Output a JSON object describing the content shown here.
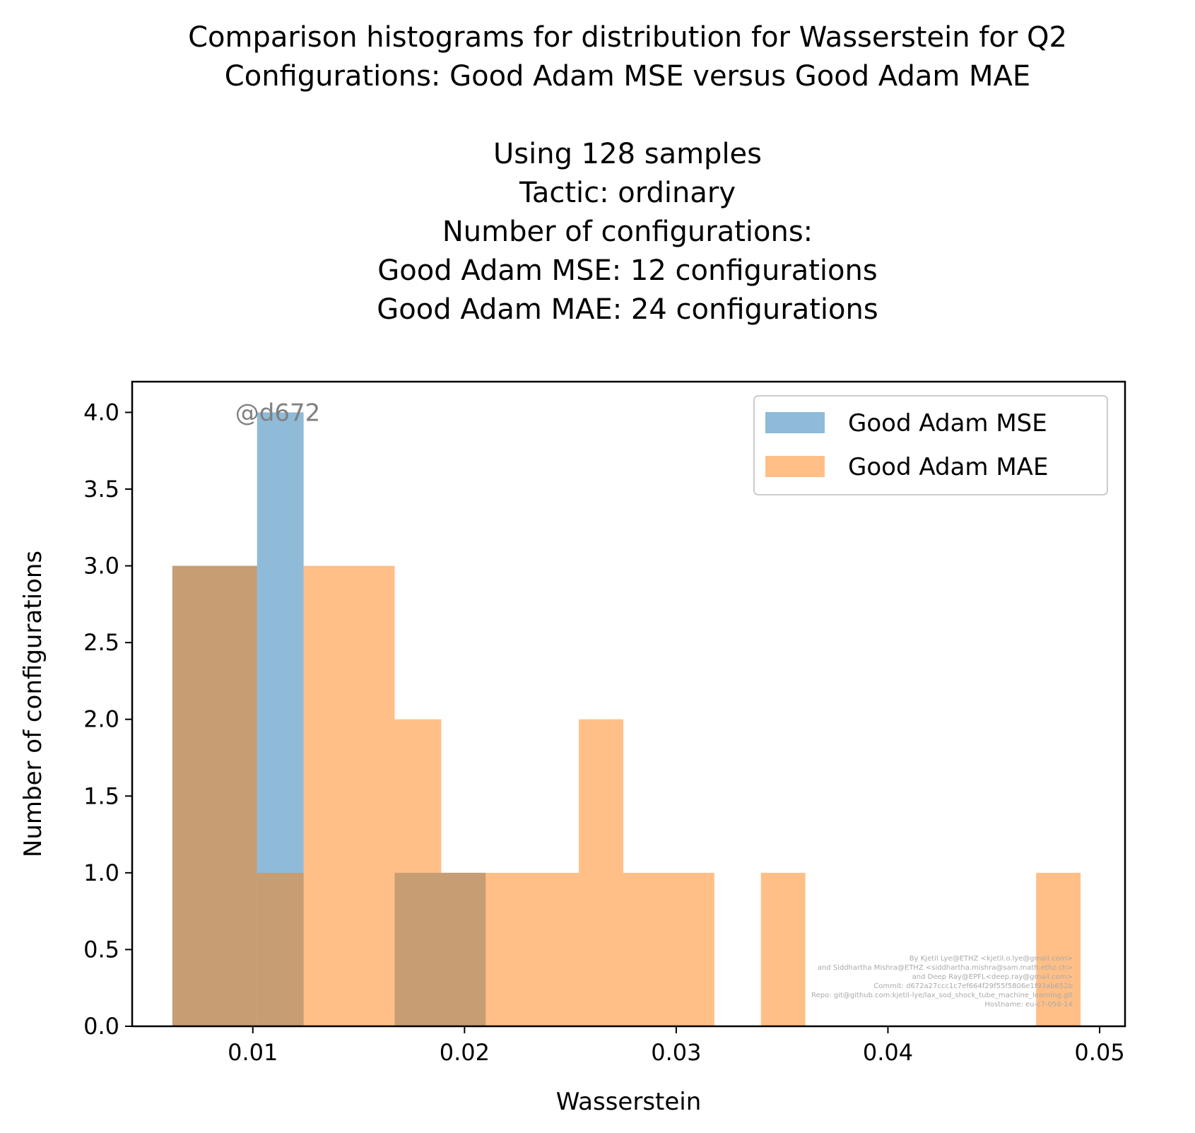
{
  "chart_data": {
    "type": "bar",
    "title_lines": [
      "Comparison histograms for distribution for Wasserstein for Q2",
      "Configurations: Good Adam MSE versus Good Adam MAE",
      "",
      "Using 128 samples",
      "Tactic: ordinary",
      "Number of configurations:",
      "Good Adam MSE: 12 configurations",
      "Good Adam MAE: 24 configurations"
    ],
    "xlabel": "Wasserstein",
    "ylabel": "Number of configurations",
    "xlim": [
      0.0043,
      0.0512
    ],
    "ylim": [
      0,
      4.2
    ],
    "xticks": [
      0.01,
      0.02,
      0.03,
      0.04,
      0.05
    ],
    "xtick_labels": [
      "0.01",
      "0.02",
      "0.03",
      "0.04",
      "0.05"
    ],
    "yticks": [
      0.0,
      0.5,
      1.0,
      1.5,
      2.0,
      2.5,
      3.0,
      3.5,
      4.0
    ],
    "ytick_labels": [
      "0.0",
      "0.5",
      "1.0",
      "1.5",
      "2.0",
      "2.5",
      "3.0",
      "3.5",
      "4.0"
    ],
    "grid": false,
    "legend_position": "top-right",
    "series": [
      {
        "name": "Good Adam MSE",
        "color": "#1f77b4",
        "opacity": 0.5,
        "bins": [
          {
            "x0": 0.0062,
            "x1": 0.0102,
            "count": 3
          },
          {
            "x0": 0.0102,
            "x1": 0.0124,
            "count": 4
          },
          {
            "x0": 0.0167,
            "x1": 0.021,
            "count": 1
          }
        ]
      },
      {
        "name": "Good Adam MAE",
        "color": "#ff7f0e",
        "opacity": 0.5,
        "bins": [
          {
            "x0": 0.0062,
            "x1": 0.0102,
            "count": 3
          },
          {
            "x0": 0.0102,
            "x1": 0.0124,
            "count": 1
          },
          {
            "x0": 0.0124,
            "x1": 0.0167,
            "count": 3
          },
          {
            "x0": 0.0167,
            "x1": 0.0189,
            "count": 2
          },
          {
            "x0": 0.0189,
            "x1": 0.0254,
            "count": 1
          },
          {
            "x0": 0.0254,
            "x1": 0.0275,
            "count": 2
          },
          {
            "x0": 0.0275,
            "x1": 0.0318,
            "count": 1
          },
          {
            "x0": 0.034,
            "x1": 0.0361,
            "count": 1
          },
          {
            "x0": 0.047,
            "x1": 0.0491,
            "count": 1
          }
        ]
      }
    ],
    "annotation": "@d672",
    "credits": [
      "By Kjetil Lye@ETHZ <kjetil.o.lye@gmail.com>",
      "and Siddhartha Mishra@ETHZ <siddhartha.mishra@sam.math.ethz.ch>",
      "and Deep Ray@EPFL<deep.ray@gmail.com>",
      "Commit: d672a27ccc1c7ef664f29f55f5806e1f93ab652b",
      "Repo: git@github.com:kjetil-lye/lax_sod_shock_tube_machine_learning.git",
      "Hostname: eu-c7-056-14"
    ]
  }
}
